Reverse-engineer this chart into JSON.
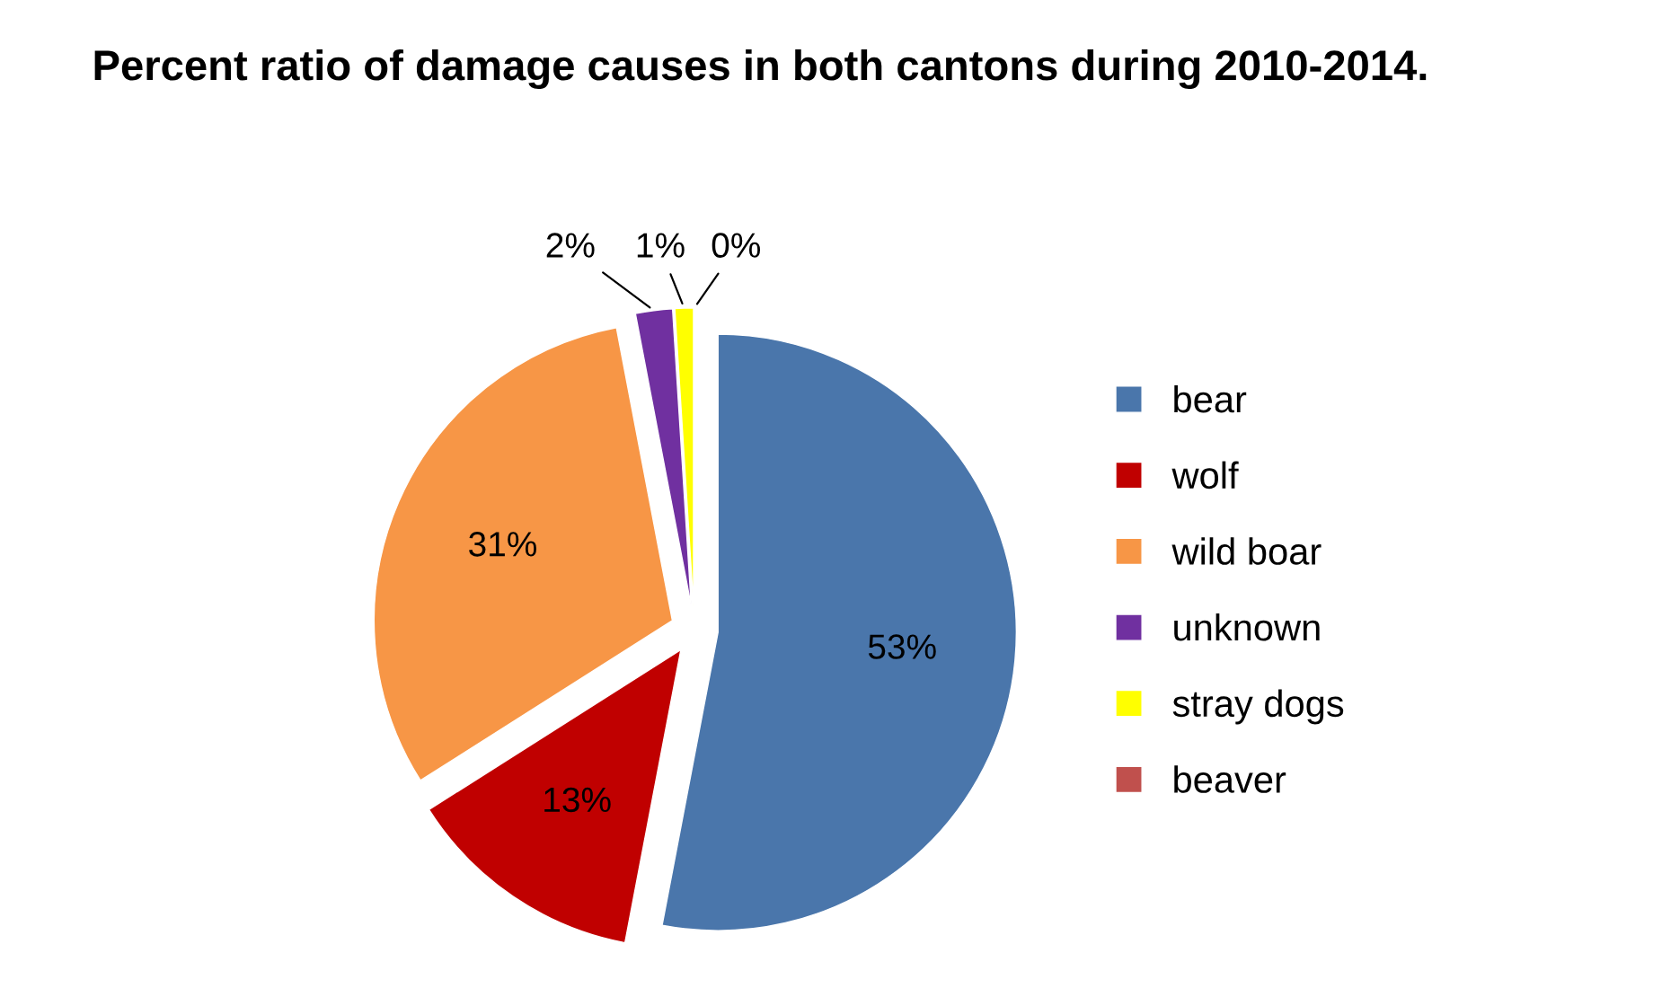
{
  "chart_data": {
    "type": "pie",
    "title": "Percent ratio of damage causes in both cantons during 2010-2014.",
    "categories": [
      "bear",
      "wolf",
      "wild boar",
      "unknown",
      "stray dogs",
      "beaver"
    ],
    "values": [
      53,
      13,
      31,
      2,
      1,
      0
    ],
    "value_labels": [
      "53%",
      "13%",
      "31%",
      "2%",
      "1%",
      "0%"
    ],
    "colors": [
      "#4a76ab",
      "#c00000",
      "#f79646",
      "#7030a0",
      "#ffff00",
      "#c0504d"
    ],
    "legend": "right"
  }
}
